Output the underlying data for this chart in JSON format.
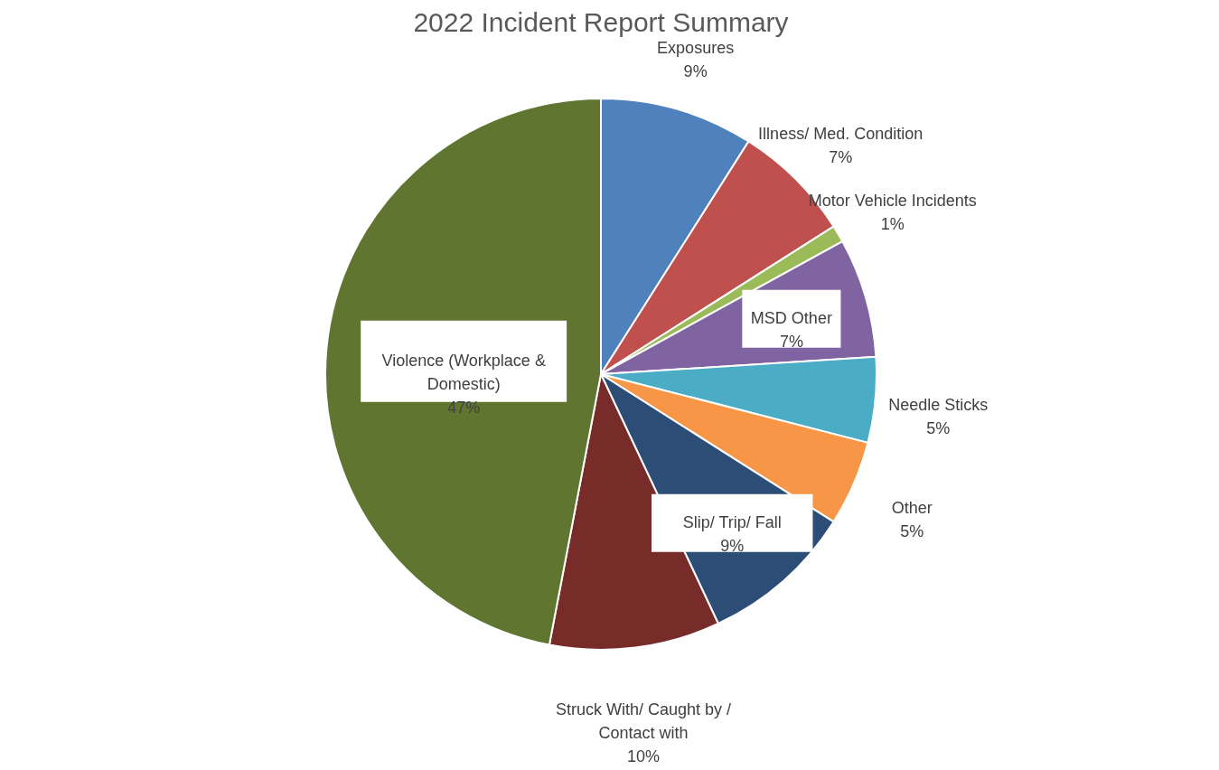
{
  "chart_data": {
    "type": "pie",
    "title": "2022 Incident Report Summary",
    "categories": [
      "Exposures",
      "Illness/ Med. Condition",
      "Motor Vehicle Incidents",
      "MSD Other",
      "Needle Sticks",
      "Other",
      "Slip/ Trip/ Fall",
      "Struck With/ Caught by / Contact with",
      "Violence (Workplace & Domestic)"
    ],
    "values": [
      9,
      7,
      1,
      7,
      5,
      5,
      9,
      10,
      47
    ],
    "value_labels": [
      "9%",
      "7%",
      "1%",
      "7%",
      "5%",
      "5%",
      "9%",
      "10%",
      "47%"
    ],
    "colors": [
      "#4f81bd",
      "#c0504d",
      "#9bbb59",
      "#8064a2",
      "#4bacc6",
      "#f79646",
      "#2c4d75",
      "#772c2a",
      "#5f7530"
    ],
    "legend": false
  }
}
